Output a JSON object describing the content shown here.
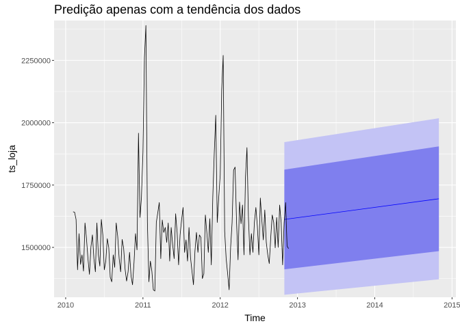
{
  "chart_data": {
    "type": "line",
    "title": "Predição apenas com a tendência dos dados",
    "xlabel": "Time",
    "ylabel": "ts_loja",
    "xlim": [
      2009.85,
      2015.05
    ],
    "ylim": [
      1300000,
      2410000
    ],
    "x_ticks": [
      2010,
      2011,
      2012,
      2013,
      2014,
      2015
    ],
    "y_ticks": [
      1500000,
      1750000,
      2000000,
      2250000
    ],
    "x_tick_labels": [
      "2010",
      "2011",
      "2012",
      "2013",
      "2014",
      "2015"
    ],
    "y_tick_labels": [
      "1500000",
      "1750000",
      "2000000",
      "2250000"
    ],
    "grid": true,
    "colors": {
      "panel": "#ebebeb",
      "grid": "#ffffff",
      "series": "#000000",
      "forecast": "#0000ff",
      "band80": "#7f7fee",
      "band95": "#c3c3f5"
    },
    "series": [
      {
        "start": 2010.0962,
        "frequency": 52,
        "values": [
          1643000,
          1641000,
          1612000,
          1410000,
          1555000,
          1432000,
          1470000,
          1405000,
          1598000,
          1535000,
          1455000,
          1392000,
          1502000,
          1550000,
          1455000,
          1402000,
          1598000,
          1470000,
          1425000,
          1612000,
          1550000,
          1410000,
          1445000,
          1535000,
          1500000,
          1380000,
          1362000,
          1470000,
          1420000,
          1598000,
          1545000,
          1455000,
          1402000,
          1532000,
          1498000,
          1412000,
          1365000,
          1402000,
          1480000,
          1385000,
          1350000,
          1440000,
          1555000,
          1490000,
          1958000,
          1620000,
          1700000,
          1880000,
          2260000,
          2390000,
          1600000,
          1362000,
          1445000,
          1405000,
          1330000,
          1325000,
          1600000,
          1640000,
          1680000,
          1455000,
          1610000,
          1560000,
          1580000,
          1520000,
          1598000,
          1445000,
          1580000,
          1510000,
          1455000,
          1635000,
          1560000,
          1430000,
          1550000,
          1610000,
          1660000,
          1480000,
          1530000,
          1445000,
          1580000,
          1460000,
          1405000,
          1350000,
          1485000,
          1560000,
          1480000,
          1550000,
          1540000,
          1375000,
          1395000,
          1630000,
          1560000,
          1480000,
          1615000,
          1430000,
          1700000,
          1880000,
          2030000,
          1600000,
          1700000,
          1790000,
          2130000,
          2270000,
          1565000,
          1455000,
          1395000,
          1330000,
          1500000,
          1600000,
          1810000,
          1822000,
          1600000,
          1450000,
          1682000,
          1595000,
          1670000,
          1470000,
          1780000,
          1900000,
          1620000,
          1470000,
          1555000,
          1480000,
          1600000,
          1660000,
          1585000,
          1470000,
          1698000,
          1610000,
          1530000,
          1650000,
          1520000,
          1470000,
          1435000,
          1540000,
          1630000,
          1600000,
          1498000,
          1620000,
          1500000,
          1670000,
          1600000,
          1430000,
          1598000,
          1680000,
          1505000,
          1495000
        ]
      }
    ],
    "forecast": {
      "x_start": 2012.83,
      "x_end": 2014.83,
      "mean": [
        1612000,
        1695000
      ],
      "lo80": [
        1412000,
        1485000
      ],
      "hi80": [
        1812000,
        1905000
      ],
      "lo95": [
        1310000,
        1372000
      ],
      "hi95": [
        1922000,
        2018000
      ]
    }
  }
}
